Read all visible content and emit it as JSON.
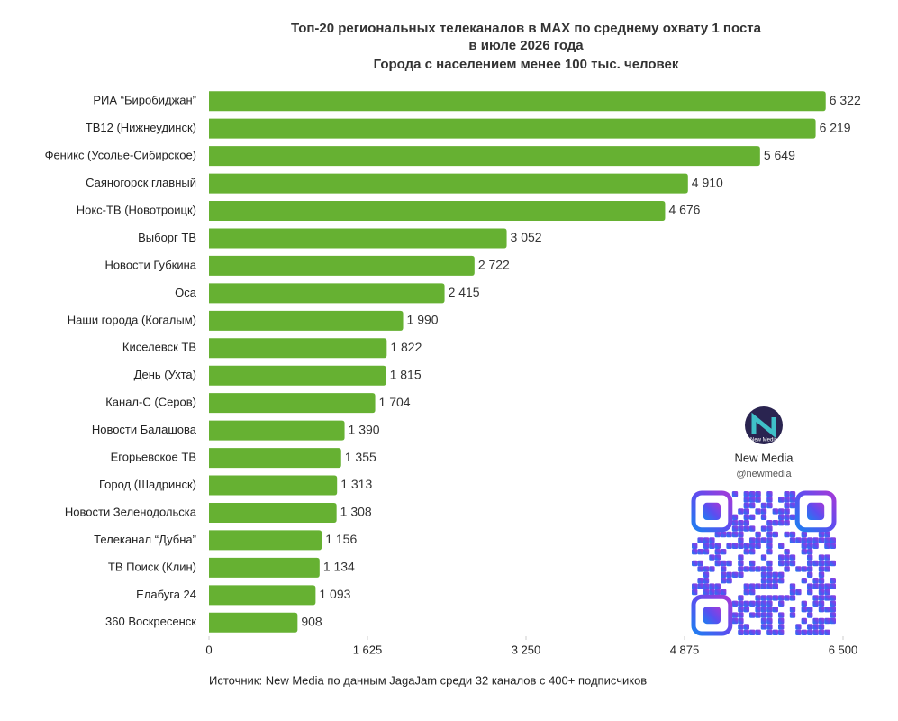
{
  "chart_data": {
    "type": "hbar",
    "title": [
      "Топ-20 региональных телеканалов в MAX по среднему охвату 1 поста",
      "в июле 2026 года"
    ],
    "subtitle": "Города с населением менее 100 тыс. человек",
    "categories": [
      "РИА “Биробиджан”",
      "ТВ12 (Нижнеудинск)",
      "Феникс (Усолье-Сибирское)",
      "Саяногорск главный",
      "Нокс-ТВ (Новотроицк)",
      "Выборг ТВ",
      "Новости Губкина",
      "Оса",
      "Наши города (Когалым)",
      "Киселевск ТВ",
      "День (Ухта)",
      "Канал-С (Серов)",
      "Новости Балашова",
      "Егорьевское ТВ",
      "Город (Шадринск)",
      "Новости Зеленодольска",
      "Телеканал “Дубна”",
      "ТВ Поиск (Клин)",
      "Елабуга 24",
      "360 Воскресенск"
    ],
    "values": [
      6322,
      6219,
      5649,
      4910,
      4676,
      3052,
      2722,
      2415,
      1990,
      1822,
      1815,
      1704,
      1390,
      1355,
      1313,
      1308,
      1156,
      1134,
      1093,
      908
    ],
    "value_labels": [
      "6 322",
      "6 219",
      "5 649",
      "4 910",
      "4 676",
      "3 052",
      "2 722",
      "2 415",
      "1 990",
      "1 822",
      "1 815",
      "1 704",
      "1 390",
      "1 355",
      "1 313",
      "1 308",
      "1 156",
      "1 134",
      "1 093",
      "908"
    ],
    "color": "#66b132",
    "xlim": [
      0,
      6500
    ],
    "xticks": [
      0,
      {
        "value": 1625,
        "label": "1 625"
      },
      {
        "value": 3250,
        "label": "3 250"
      },
      {
        "value": 4875,
        "label": "4 875"
      },
      {
        "value": 6500,
        "label": "6 500"
      }
    ],
    "source": "Источник: New Media по данным JagaJam среди 32 каналов с 400+ подписчиков"
  },
  "logo": {
    "mark": "New Media",
    "name": "New Media",
    "handle": "@newmedia"
  }
}
